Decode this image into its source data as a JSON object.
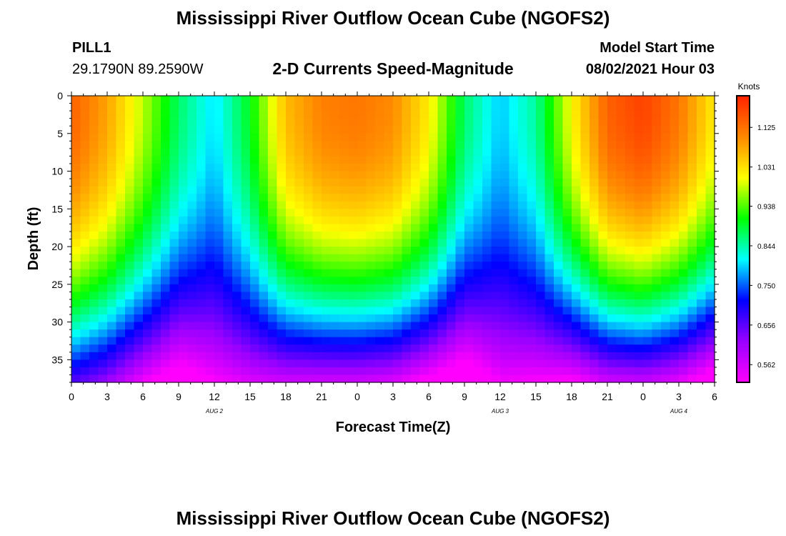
{
  "header": {
    "title": "Mississippi River Outflow Ocean Cube (NGOFS2)",
    "station_id": "PILL1",
    "coordinates": "29.1790N  89.2590W",
    "plot_title": "2-D Currents Speed-Magnitude",
    "model_start_label": "Model Start Time",
    "model_start_value": "08/02/2021 Hour 03"
  },
  "footer": {
    "title": "Mississippi River Outflow Ocean Cube (NGOFS2)"
  },
  "chart_data": {
    "type": "heatmap",
    "title": "2-D Currents Speed-Magnitude",
    "xlabel": "Forecast Time(Z)",
    "ylabel": "Depth (ft)",
    "x_unit": "hours from Aug 2 00Z",
    "xlim": [
      0,
      54
    ],
    "ylim": [
      0,
      38
    ],
    "y_reversed": true,
    "x_tick_values": [
      0,
      3,
      6,
      9,
      12,
      15,
      18,
      21,
      24,
      27,
      30,
      33,
      36,
      39,
      42,
      45,
      48,
      51,
      54
    ],
    "x_tick_labels": [
      "0",
      "3",
      "6",
      "9",
      "12",
      "15",
      "18",
      "21",
      "0",
      "3",
      "6",
      "9",
      "12",
      "15",
      "18",
      "21",
      "0",
      "3",
      "6"
    ],
    "y_ticks": [
      0,
      5,
      10,
      15,
      20,
      25,
      30,
      35
    ],
    "date_labels": [
      {
        "label": "AUG 2",
        "at": 12
      },
      {
        "label": "AUG 3",
        "at": 36
      },
      {
        "label": "AUG 4",
        "at": 51
      }
    ],
    "colorbar": {
      "unit": "Knots",
      "range": [
        0.52,
        1.2
      ],
      "tick_values": [
        0.562,
        0.656,
        0.75,
        0.844,
        0.938,
        1.031,
        1.125
      ],
      "tick_labels": [
        "0.562",
        "0.656",
        "0.750",
        "0.844",
        "0.938",
        "1.031",
        "1.125"
      ],
      "colors": [
        "#ff00ff",
        "#9900ff",
        "#0000ff",
        "#00ffff",
        "#00ff00",
        "#ffff00",
        "#ff8800",
        "#ff2200"
      ]
    },
    "grid": {
      "time_step_hours": 0.75,
      "depth_step_ft": 1,
      "surface_speed": {
        "hours": [
          0,
          3,
          6,
          9,
          12,
          15,
          18,
          21,
          24,
          27,
          30,
          33,
          36,
          39,
          42,
          45,
          48,
          51,
          54
        ],
        "knots": [
          1.14,
          1.08,
          0.98,
          0.87,
          0.8,
          0.9,
          1.06,
          1.11,
          1.12,
          1.1,
          1.02,
          0.87,
          0.79,
          0.85,
          1.01,
          1.14,
          1.17,
          1.12,
          1.02
        ]
      },
      "vertical_decrease": {
        "hours": [
          0,
          3,
          6,
          9,
          12,
          15,
          18,
          21,
          24,
          27,
          30,
          33,
          36,
          39,
          42,
          45,
          48,
          51,
          54
        ],
        "knots": [
          0.48,
          0.47,
          0.45,
          0.4,
          0.28,
          0.35,
          0.5,
          0.55,
          0.56,
          0.55,
          0.52,
          0.42,
          0.26,
          0.33,
          0.5,
          0.58,
          0.6,
          0.58,
          0.55
        ]
      }
    }
  }
}
